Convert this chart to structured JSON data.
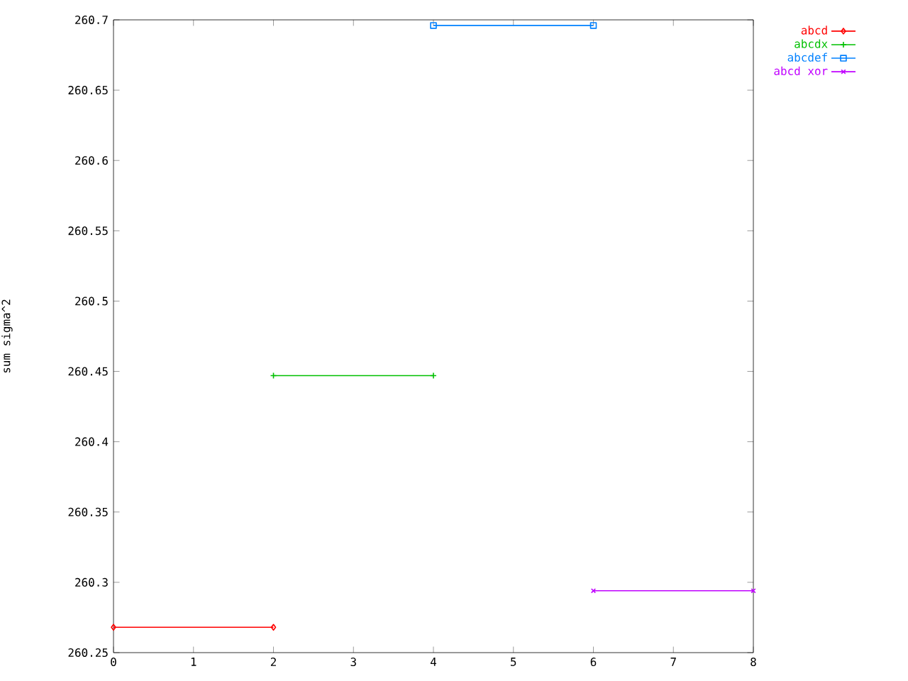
{
  "chart_data": {
    "type": "line",
    "ylabel": "sum sigma^2",
    "series": [
      {
        "name": "abcd",
        "color": "#ff0000",
        "marker": "diamond",
        "x": [
          0,
          2
        ],
        "values": [
          260.268,
          260.268
        ]
      },
      {
        "name": "abcdx",
        "color": "#00c000",
        "marker": "plus",
        "x": [
          2,
          4
        ],
        "values": [
          260.447,
          260.447
        ]
      },
      {
        "name": "abcdef",
        "color": "#0080ff",
        "marker": "square",
        "x": [
          4,
          6
        ],
        "values": [
          260.696,
          260.696
        ]
      },
      {
        "name": "abcd xor",
        "color": "#c000ff",
        "marker": "cross",
        "x": [
          6,
          8
        ],
        "values": [
          260.294,
          260.294
        ]
      }
    ],
    "xlim": [
      0,
      8
    ],
    "xticks": [
      0,
      1,
      2,
      3,
      4,
      5,
      6,
      7,
      8
    ],
    "ylim": [
      260.25,
      260.7
    ],
    "yticks": [
      260.25,
      260.3,
      260.35,
      260.4,
      260.45,
      260.5,
      260.55,
      260.6,
      260.65,
      260.7
    ],
    "grid": false,
    "legend": "top right",
    "line_style": "solid"
  }
}
